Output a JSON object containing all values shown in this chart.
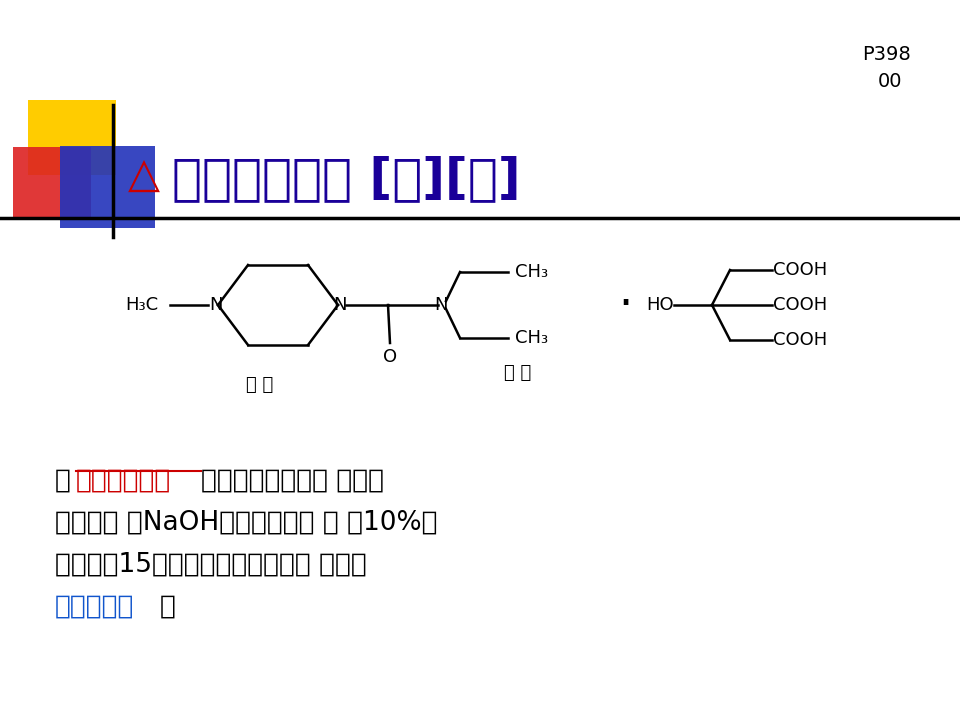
{
  "bg_color": "#ffffff",
  "title_text": "枸樼酸乙胺嘊 [典][基]",
  "title_color": "#1a0099",
  "title_fontsize": 36,
  "page_ref": "P398",
  "page_ref2": "00",
  "delta_color": "#cc0000",
  "formula_color": "#000000",
  "piperazine_label": "哆 嘊",
  "ethanolamine_label": "乙 胺",
  "red_text": "抗丝虫病药物",
  "blue_text": "暗蓝色沉淠",
  "text_color_main": "#000000",
  "text_color_red": "#cc0000",
  "text_color_blue": "#1155cc",
  "line1_pre": "为",
  "line1_post": "，也可用于哮唸， 水溶液",
  "line2": "显酸性， 加NaOH游离出乙胺嘊 ， 与10%的",
  "line3": "钒酸镃－15％硫酸试液经加热后， 可生成",
  "line4_post": "。"
}
